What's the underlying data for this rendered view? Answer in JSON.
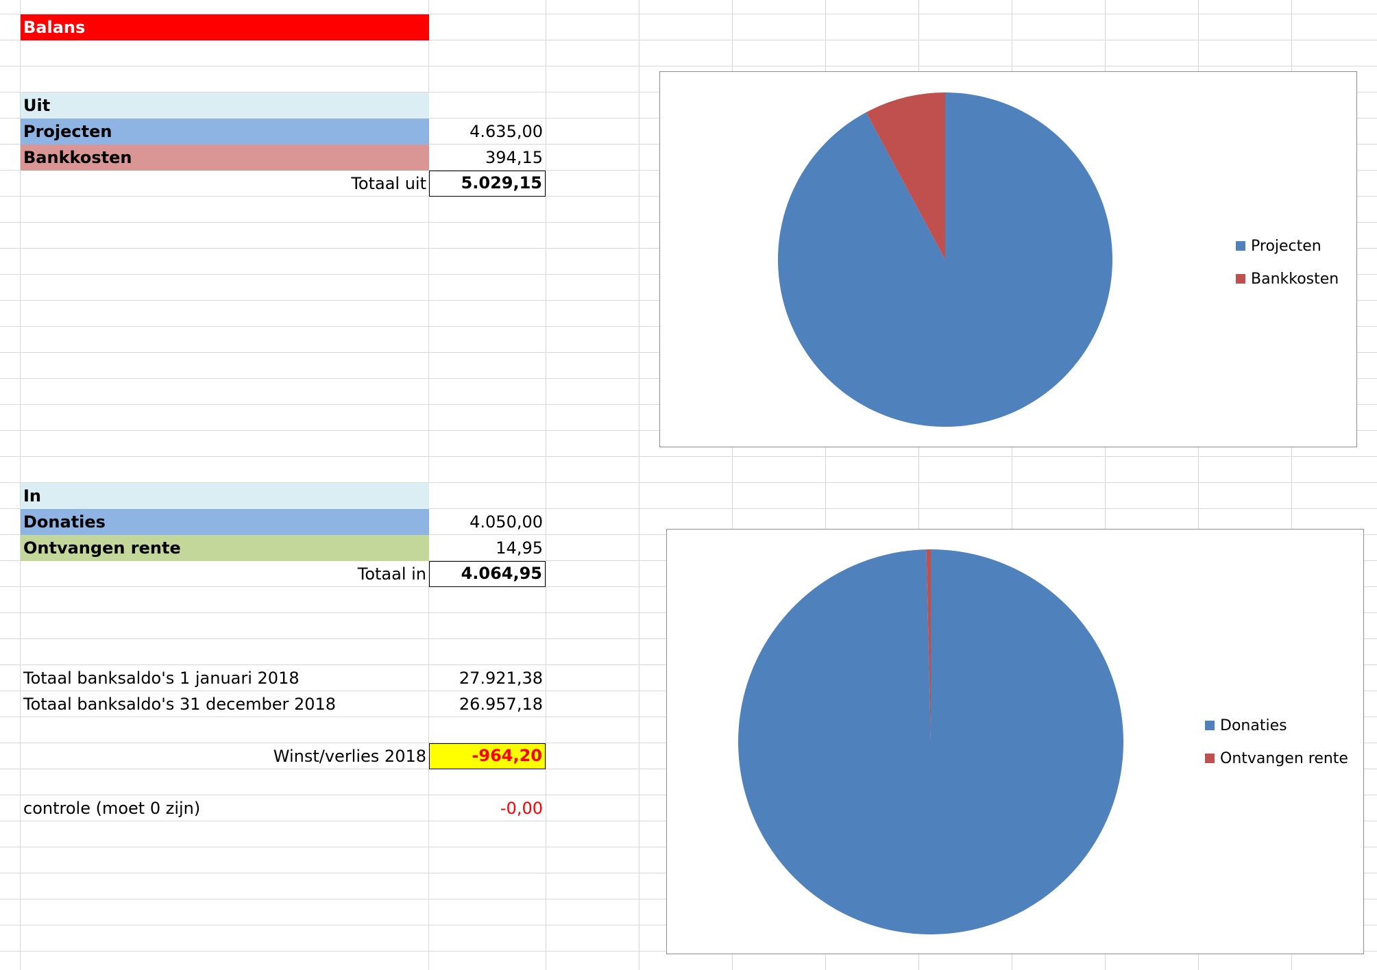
{
  "sheet": {
    "title": "Balans",
    "colors": {
      "title_bg": "#ff0000",
      "section_bg": "#daeef3",
      "blue_row": "#8db4e2",
      "red_row": "#da9694",
      "green_row": "#c4d79b",
      "highlight": "#ffff00",
      "negative_text": "#ff0000",
      "pie_blue": "#4f81bd",
      "pie_red": "#c0504d"
    },
    "uit": {
      "header": "Uit",
      "rows": [
        {
          "label": "Projecten",
          "value": "4.635,00"
        },
        {
          "label": "Bankkosten",
          "value": "394,15"
        }
      ],
      "total_label": "Totaal uit",
      "total_value": "5.029,15"
    },
    "in": {
      "header": "In",
      "rows": [
        {
          "label": "Donaties",
          "value": "4.050,00"
        },
        {
          "label": "Ontvangen rente",
          "value": "14,95"
        }
      ],
      "total_label": "Totaal in",
      "total_value": "4.064,95"
    },
    "bank": [
      {
        "label": "Totaal banksaldo's 1 januari 2018",
        "value": "27.921,38"
      },
      {
        "label": "Totaal banksaldo's 31 december 2018",
        "value": "26.957,18"
      }
    ],
    "result": {
      "label": "Winst/verlies 2018",
      "value": "-964,20"
    },
    "check": {
      "label": "controle (moet 0 zijn)",
      "value": "-0,00"
    }
  },
  "chart_data": [
    {
      "type": "pie",
      "categories": [
        "Projecten",
        "Bankkosten"
      ],
      "values": [
        4635.0,
        394.15
      ],
      "colors": [
        "#4f81bd",
        "#c0504d"
      ],
      "legend": "right"
    },
    {
      "type": "pie",
      "categories": [
        "Donaties",
        "Ontvangen rente"
      ],
      "values": [
        4050.0,
        14.95
      ],
      "colors": [
        "#4f81bd",
        "#c0504d"
      ],
      "legend": "right"
    }
  ]
}
